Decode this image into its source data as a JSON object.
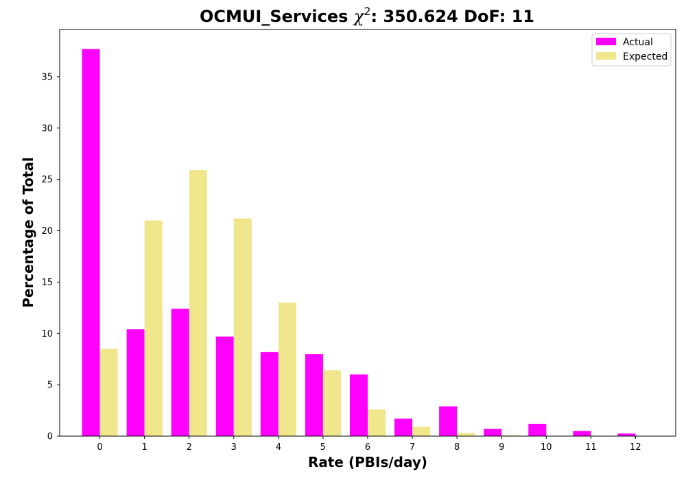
{
  "chart_data": {
    "type": "bar",
    "title": {
      "prefix": "OCMUI_Services ",
      "chi_symbol": "χ",
      "exponent": "2",
      "suffix": ": 350.624 DoF: 11"
    },
    "xlabel": "Rate (PBIs/day)",
    "ylabel": "Percentage of Total",
    "categories": [
      "0",
      "1",
      "2",
      "3",
      "4",
      "5",
      "6",
      "7",
      "8",
      "9",
      "10",
      "11",
      "12"
    ],
    "yticks": [
      0,
      5,
      10,
      15,
      20,
      25,
      30,
      35
    ],
    "ylim": [
      0,
      39.6
    ],
    "grid": false,
    "legend_position": "top-right",
    "series": [
      {
        "name": "Actual",
        "color": "#ff00ff",
        "values": [
          37.7,
          10.4,
          12.4,
          9.7,
          8.2,
          8.0,
          6.0,
          1.7,
          2.9,
          0.7,
          1.2,
          0.5,
          0.25
        ]
      },
      {
        "name": "Expected",
        "color": "#f0e68c",
        "values": [
          8.5,
          21.0,
          25.9,
          21.2,
          13.0,
          6.4,
          2.6,
          0.9,
          0.3,
          0.1,
          0.02,
          0.0,
          0.0
        ]
      }
    ]
  }
}
